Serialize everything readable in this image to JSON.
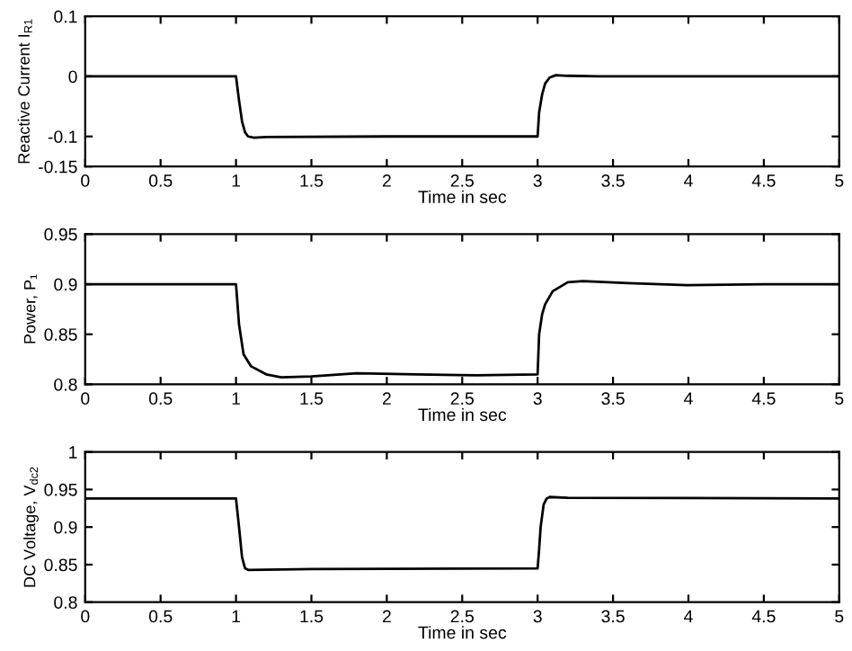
{
  "chart_data": [
    {
      "type": "line",
      "ylabel": "Reactive Current I$_{R1}$",
      "xlabel": "Time in sec",
      "series": [
        {
          "color": "#000000",
          "x": [
            0,
            1.0,
            1.02,
            1.04,
            1.06,
            1.08,
            1.12,
            1.2,
            2.0,
            3.0,
            3.01,
            3.03,
            3.05,
            3.08,
            3.12,
            3.2,
            3.4,
            5
          ],
          "values": [
            0,
            0,
            -0.04,
            -0.075,
            -0.093,
            -0.1,
            -0.102,
            -0.101,
            -0.1,
            -0.1,
            -0.06,
            -0.03,
            -0.012,
            -0.002,
            0.002,
            0.001,
            0,
            0
          ]
        }
      ],
      "xlim": [
        0,
        5
      ],
      "xticks": [
        0,
        0.5,
        1,
        1.5,
        2,
        2.5,
        3,
        3.5,
        4,
        4.5,
        5
      ],
      "ylim": [
        -0.15,
        0.1
      ],
      "yticks": [
        -0.15,
        -0.1,
        0,
        0.1
      ],
      "grid": false,
      "legend": false
    },
    {
      "type": "line",
      "ylabel": "Power, P₁",
      "xlabel": "Time in sec",
      "series": [
        {
          "color": "#000000",
          "x": [
            0,
            1.0,
            1.01,
            1.02,
            1.05,
            1.1,
            1.2,
            1.3,
            1.5,
            1.8,
            2.2,
            2.6,
            3.0,
            3.01,
            3.03,
            3.05,
            3.1,
            3.2,
            3.3,
            3.6,
            4.0,
            4.5,
            5
          ],
          "values": [
            0.9,
            0.9,
            0.88,
            0.86,
            0.83,
            0.818,
            0.81,
            0.807,
            0.808,
            0.811,
            0.81,
            0.809,
            0.81,
            0.85,
            0.87,
            0.88,
            0.893,
            0.902,
            0.903,
            0.901,
            0.899,
            0.9,
            0.9
          ]
        }
      ],
      "xlim": [
        0,
        5
      ],
      "xticks": [
        0,
        0.5,
        1,
        1.5,
        2,
        2.5,
        3,
        3.5,
        4,
        4.5,
        5
      ],
      "ylim": [
        0.8,
        0.95
      ],
      "yticks": [
        0.8,
        0.85,
        0.9,
        0.95
      ],
      "grid": false,
      "legend": false
    },
    {
      "type": "line",
      "ylabel": "DC Voltage, V$_{dc2}$",
      "xlabel": "Time in sec",
      "series": [
        {
          "color": "#000000",
          "x": [
            0,
            1.0,
            1.02,
            1.04,
            1.06,
            1.08,
            1.5,
            3.0,
            3.01,
            3.02,
            3.04,
            3.06,
            3.08,
            3.2,
            5
          ],
          "values": [
            0.938,
            0.938,
            0.9,
            0.86,
            0.845,
            0.843,
            0.844,
            0.845,
            0.87,
            0.9,
            0.93,
            0.938,
            0.94,
            0.939,
            0.938
          ]
        }
      ],
      "xlim": [
        0,
        5
      ],
      "xticks": [
        0,
        0.5,
        1,
        1.5,
        2,
        2.5,
        3,
        3.5,
        4,
        4.5,
        5
      ],
      "ylim": [
        0.8,
        1
      ],
      "yticks": [
        0.8,
        0.85,
        0.9,
        0.95,
        1
      ],
      "grid": false,
      "legend": false
    }
  ]
}
